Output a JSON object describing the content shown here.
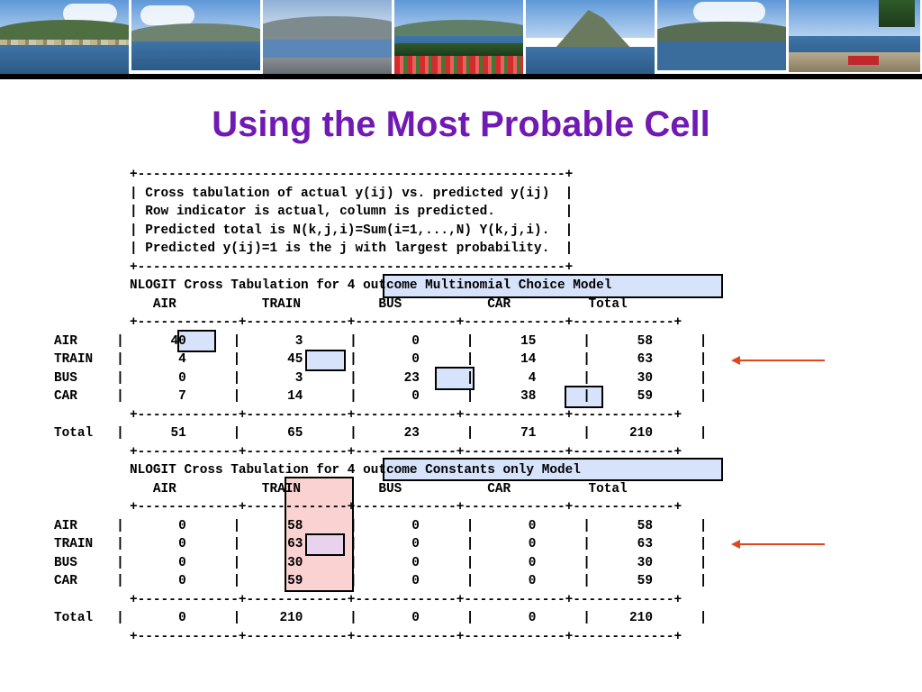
{
  "title": "Using the Most Probable Cell",
  "banner": {
    "photos": [
      "hillside-village-photo",
      "lake-city-photo",
      "lakeside-promenade-photo",
      "garden-flowers-photo",
      "mountain-lake-photo",
      "lake-valley-photo",
      "waterfront-bench-photo"
    ]
  },
  "header_box": {
    "border": "+-------------------------------------------------------+",
    "lines": [
      "| Cross tabulation of actual y(ij) vs. predicted y(ij)  |",
      "| Row indicator is actual, column is predicted.         |",
      "| Predicted total is N(k,j,i)=Sum(i=1,...,N) Y(k,j,i).  |",
      "| Predicted y(ij)=1 is the j with largest probability.  |"
    ]
  },
  "separator": "+-------------+-------------+-------------+-------------+-------------+",
  "table1": {
    "caption": "NLOGIT Cross Tabulation for 4 outcome Multinomial Choice Model",
    "header_line": "   AIR           TRAIN          BUS           CAR          Total",
    "rows": [
      "AIR     |      40      |       3      |       0      |      15      |      58      |",
      "TRAIN   |       4      |      45      |       0      |      14      |      63      |",
      "BUS     |       0      |       3      |      23      |       4      |      30      |",
      "CAR     |       7      |      14      |       0      |      38      |      59      |"
    ],
    "total_row": "Total   |      51      |      65      |      23      |      71      |     210      |"
  },
  "table2": {
    "caption": "NLOGIT Cross Tabulation for 4 outcome Constants only Model",
    "header_line": "   AIR           TRAIN          BUS           CAR          Total",
    "rows": [
      "AIR     |       0      |      58      |       0      |       0      |      58      |",
      "TRAIN   |       0      |      63      |       0      |       0      |      63      |",
      "BUS     |       0      |      30      |       0      |       0      |      30      |",
      "CAR     |       0      |      59      |       0      |       0      |      59      |"
    ],
    "total_row": "Total   |       0      |     210      |       0      |       0      |     210      |"
  },
  "colors": {
    "title": "#7019b3",
    "highlight_blue": "#d7e3fb",
    "highlight_pink": "#fbd2d2",
    "highlight_lilac": "#e8d2ee",
    "arrow": "#e0461c"
  }
}
